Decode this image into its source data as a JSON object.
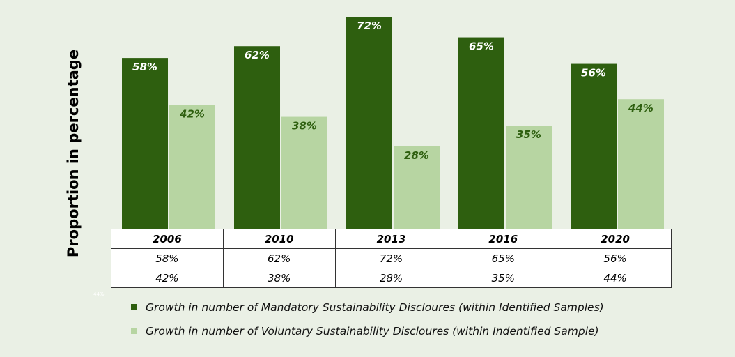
{
  "chart_data": {
    "type": "bar",
    "ylabel": "Proportion in percentage",
    "categories": [
      "2006",
      "2010",
      "2013",
      "2016",
      "2020"
    ],
    "series": [
      {
        "name": "Growth in number of Mandatory Sustainability Discloures (within Identified Samples)",
        "values": [
          58,
          62,
          72,
          65,
          56
        ],
        "labels": [
          "58%",
          "62%",
          "72%",
          "65%",
          "56%"
        ],
        "color": "#2e5f0f",
        "label_color": "#ffffff"
      },
      {
        "name": "Growth in number of Voluntary Sustainability Discloures (within Indentified Sample)",
        "values": [
          42,
          38,
          28,
          35,
          44
        ],
        "labels": [
          "42%",
          "38%",
          "28%",
          "35%",
          "44%"
        ],
        "color": "#b7d5a2",
        "label_color": "#2e5f0f"
      }
    ],
    "ylim": [
      0,
      72
    ],
    "grid": false,
    "legend": "bottom",
    "data_table": true,
    "stray_text": "44%"
  }
}
